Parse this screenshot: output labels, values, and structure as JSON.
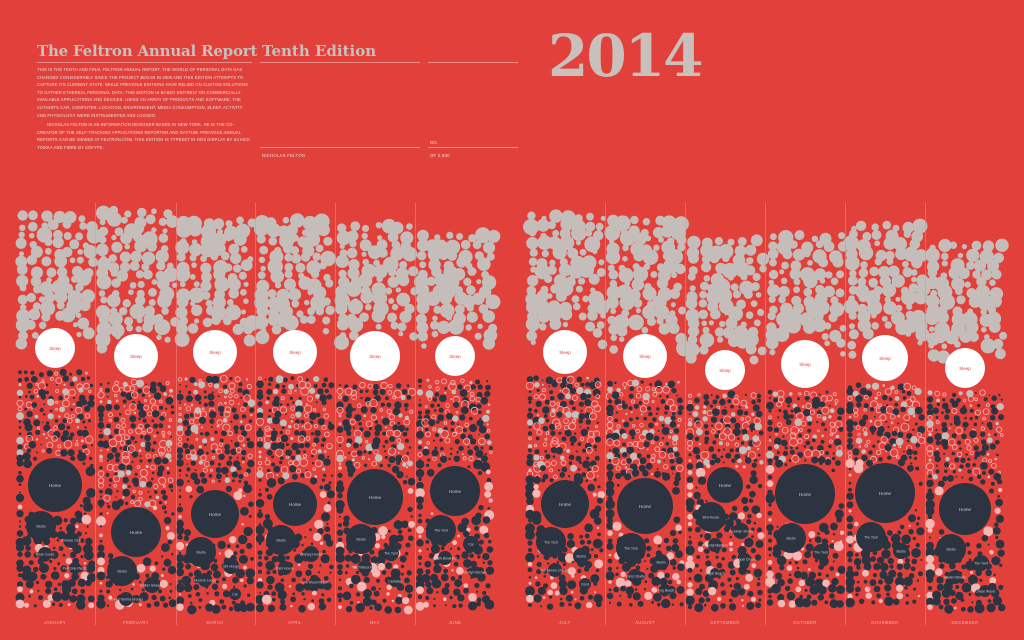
{
  "header": {
    "title": "The Feltron Annual Report",
    "edition": "Tenth Edition",
    "year": "2014",
    "intro_paragraph_1": "This is the tenth and final Feltron Annual Report. The world of personal data has changed considerably since the project began in 2005 and this edition attempts to capture its current state. While previous editions have relied on custom solutions to gather ethereal personal data, this edition is based entirely on commercially available applications and devices. Using an array of products and software, the author's car, computer, location, environment, media consumption, sleep, activity and physiology were instrumented and logged.",
    "intro_paragraph_2": "Nicholas Felton is an information designer based in New York. He is the co-creator of the self-tracking applications Reporter and Daytum. Previous annual reports can be viewed at feltron.com. This edition is typeset in NGS Display by Schick Toikka and Fibre by Sofype.",
    "author": "Nicholas Felton",
    "number_label": "No.",
    "copies": "of 2,500"
  },
  "months": [
    {
      "name": "January",
      "bubble_labels": [
        "Sleep",
        "Home",
        "Studio",
        "Chinese Club",
        "Brule Cooks",
        "Pellicone Plastic"
      ]
    },
    {
      "name": "February",
      "bubble_labels": [
        "Sleep",
        "Home",
        "Studio",
        "Walker Sweeper",
        "Cowen Tamms Brooks",
        "Landie Jeffery",
        "Jarden Suvle"
      ]
    },
    {
      "name": "March",
      "bubble_labels": [
        "Sleep",
        "Home",
        "Studio",
        "Ichi Hongo",
        "Moorish Lodge",
        "Car",
        "Noodle Alvon",
        "Bird Blind"
      ]
    },
    {
      "name": "April",
      "bubble_labels": [
        "Sleep",
        "Home",
        "Studio",
        "Lindsey House",
        "Park House",
        "Lew Wood Resort"
      ]
    },
    {
      "name": "May",
      "bubble_labels": [
        "Sleep",
        "Home",
        "Studio",
        "The Yard",
        "The Tribeca Plaza",
        "Cemdaw"
      ]
    },
    {
      "name": "June",
      "bubble_labels": [
        "Sleep",
        "Home",
        "The Yard",
        "Car",
        "Keath Breakfast",
        "Marilyn Kitchen"
      ]
    },
    {
      "name": "July",
      "bubble_labels": [
        "Sleep",
        "Home",
        "The Yard",
        "Studio",
        "The James Chicago",
        "Cond"
      ]
    },
    {
      "name": "August",
      "bubble_labels": [
        "Sleep",
        "Home",
        "The Yard",
        "Studio",
        "Marco Studio",
        "Chug Beach"
      ]
    },
    {
      "name": "September",
      "bubble_labels": [
        "Sleep",
        "Home",
        "Bird House",
        "Brooklyn Studio",
        "Rosedal Madison",
        "Chapel Chaos",
        "Sugar Beach"
      ]
    },
    {
      "name": "October",
      "bubble_labels": [
        "Sleep",
        "Home",
        "Studio",
        "The Yard"
      ]
    },
    {
      "name": "November",
      "bubble_labels": [
        "Sleep",
        "Home",
        "The Yard",
        "Studio"
      ]
    },
    {
      "name": "December",
      "bubble_labels": [
        "Sleep",
        "Home",
        "Studio",
        "The Yard",
        "Marlen Woods",
        "Chase Wood"
      ]
    }
  ],
  "colors": {
    "background": "#e2403b",
    "sleep": "#ffffff",
    "home": "#2b3440",
    "activity": "#c4bdb9",
    "dark_small": "#2b3440",
    "outline": "#f4b7b4"
  }
}
